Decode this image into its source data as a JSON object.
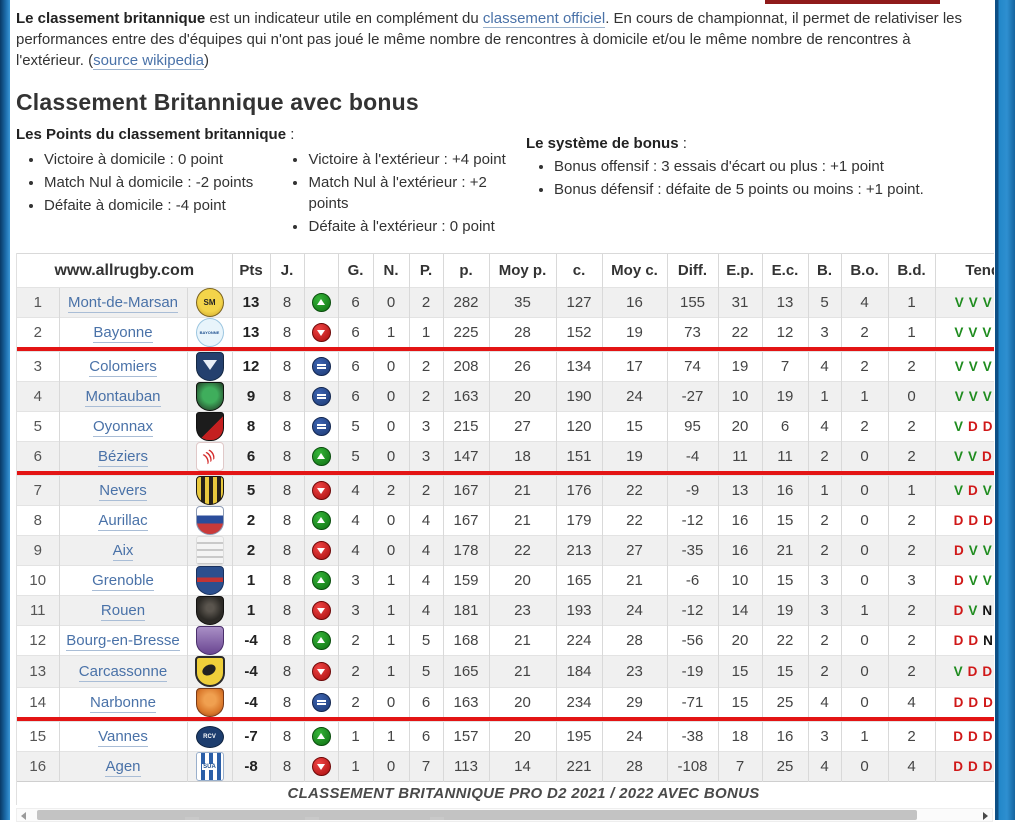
{
  "colors": {
    "side_band_blue": "#2287c9",
    "top_bar_maroon": "#8f1a1a",
    "zone_line_red": "#e31414",
    "win_green": "#1f8c1f",
    "loss_red": "#d01818",
    "draw_black": "#111111",
    "link_blue": "#4a72a8"
  },
  "intro": {
    "bold_lead": "Le classement britannique",
    "text_after_lead": " est un indicateur utile en complément du ",
    "link_official": "classement officiel",
    "text_mid": ". En cours de championnat, il permet de relativiser les performances entre des d'équipes qui n'ont pas joué le même nombre de rencontres à domicile et/ou le même nombre de rencontres à l'extérieur. (",
    "link_wikipedia": "source wikipedia",
    "text_end": ")"
  },
  "heading": "Classement Britannique avec bonus",
  "points_block": {
    "title": "Les Points du classement britannique",
    "title_suffix": " :",
    "col1": [
      "Victoire à domicile : 0 point",
      "Match Nul à domicile : -2 points",
      "Défaite à domicile : -4 point"
    ],
    "col2": [
      "Victoire à l'extérieur : +4 point",
      "Match Nul à l'extérieur : +2 points",
      "Défaite à l'extérieur : 0 point"
    ]
  },
  "bonus_block": {
    "title": "Le système de bonus",
    "title_suffix": " :",
    "items": [
      "Bonus offensif : 3 essais d'écart ou plus : +1 point",
      "Bonus défensif : défaite de 5 points ou moins : +1 point."
    ]
  },
  "table": {
    "site_header": "www.allrugby.com",
    "columns": [
      "Pts",
      "J.",
      "",
      "G.",
      "N.",
      "P.",
      "p.",
      "Moy p.",
      "c.",
      "Moy c.",
      "Diff.",
      "E.p.",
      "E.c.",
      "B.",
      "B.o.",
      "B.d.",
      "Tend"
    ],
    "caption": "CLASSEMENT BRITANNIQUE PRO D2 2021 / 2022 AVEC BONUS",
    "rows": [
      {
        "rank": "1",
        "team": "Mont-de-Marsan",
        "logo": "mont-de-marsan-logo",
        "logo_text": "SM",
        "trend": "up",
        "pts": "13",
        "j": "8",
        "g": "6",
        "n": "0",
        "p": "2",
        "pf": "282",
        "moy_p": "35",
        "c": "127",
        "moy_c": "16",
        "diff": "155",
        "ep": "31",
        "ec": "13",
        "b": "5",
        "bo": "4",
        "bd": "1",
        "tend": "VVVV",
        "sep_after": false
      },
      {
        "rank": "2",
        "team": "Bayonne",
        "logo": "bayonne-logo",
        "logo_text": "BAYONNE",
        "trend": "down",
        "pts": "13",
        "j": "8",
        "g": "6",
        "n": "1",
        "p": "1",
        "pf": "225",
        "moy_p": "28",
        "c": "152",
        "moy_c": "19",
        "diff": "73",
        "ep": "22",
        "ec": "12",
        "b": "3",
        "bo": "2",
        "bd": "1",
        "tend": "VVVN",
        "sep_after": true
      },
      {
        "rank": "3",
        "team": "Colomiers",
        "logo": "colomiers-logo",
        "logo_text": "",
        "trend": "equal",
        "pts": "12",
        "j": "8",
        "g": "6",
        "n": "0",
        "p": "2",
        "pf": "208",
        "moy_p": "26",
        "c": "134",
        "moy_c": "17",
        "diff": "74",
        "ep": "19",
        "ec": "7",
        "b": "4",
        "bo": "2",
        "bd": "2",
        "tend": "VVVV",
        "sep_after": false
      },
      {
        "rank": "4",
        "team": "Montauban",
        "logo": "montauban-logo",
        "logo_text": "",
        "trend": "equal",
        "pts": "9",
        "j": "8",
        "g": "6",
        "n": "0",
        "p": "2",
        "pf": "163",
        "moy_p": "20",
        "c": "190",
        "moy_c": "24",
        "diff": "-27",
        "ep": "10",
        "ec": "19",
        "b": "1",
        "bo": "1",
        "bd": "0",
        "tend": "VVVV",
        "sep_after": false
      },
      {
        "rank": "5",
        "team": "Oyonnax",
        "logo": "oyonnax-logo",
        "logo_text": "",
        "trend": "equal",
        "pts": "8",
        "j": "8",
        "g": "5",
        "n": "0",
        "p": "3",
        "pf": "215",
        "moy_p": "27",
        "c": "120",
        "moy_c": "15",
        "diff": "95",
        "ep": "20",
        "ec": "6",
        "b": "4",
        "bo": "2",
        "bd": "2",
        "tend": "VDDV",
        "sep_after": false
      },
      {
        "rank": "6",
        "team": "Béziers",
        "logo": "beziers-logo",
        "logo_text": ")))",
        "trend": "up",
        "pts": "6",
        "j": "8",
        "g": "5",
        "n": "0",
        "p": "3",
        "pf": "147",
        "moy_p": "18",
        "c": "151",
        "moy_c": "19",
        "diff": "-4",
        "ep": "11",
        "ec": "11",
        "b": "2",
        "bo": "0",
        "bd": "2",
        "tend": "VVDD",
        "sep_after": true
      },
      {
        "rank": "7",
        "team": "Nevers",
        "logo": "nevers-logo",
        "logo_text": "",
        "trend": "down",
        "pts": "5",
        "j": "8",
        "g": "4",
        "n": "2",
        "p": "2",
        "pf": "167",
        "moy_p": "21",
        "c": "176",
        "moy_c": "22",
        "diff": "-9",
        "ep": "13",
        "ec": "16",
        "b": "1",
        "bo": "0",
        "bd": "1",
        "tend": "VDVN",
        "sep_after": false
      },
      {
        "rank": "8",
        "team": "Aurillac",
        "logo": "aurillac-logo",
        "logo_text": "",
        "trend": "up",
        "pts": "2",
        "j": "8",
        "g": "4",
        "n": "0",
        "p": "4",
        "pf": "167",
        "moy_p": "21",
        "c": "179",
        "moy_c": "22",
        "diff": "-12",
        "ep": "16",
        "ec": "15",
        "b": "2",
        "bo": "0",
        "bd": "2",
        "tend": "DDDV",
        "sep_after": false
      },
      {
        "rank": "9",
        "team": "Aix",
        "logo": "aix-logo",
        "logo_text": "",
        "trend": "down",
        "pts": "2",
        "j": "8",
        "g": "4",
        "n": "0",
        "p": "4",
        "pf": "178",
        "moy_p": "22",
        "c": "213",
        "moy_c": "27",
        "diff": "-35",
        "ep": "16",
        "ec": "21",
        "b": "2",
        "bo": "0",
        "bd": "2",
        "tend": "DVVD",
        "sep_after": false
      },
      {
        "rank": "10",
        "team": "Grenoble",
        "logo": "grenoble-logo",
        "logo_text": "",
        "trend": "up",
        "pts": "1",
        "j": "8",
        "g": "3",
        "n": "1",
        "p": "4",
        "pf": "159",
        "moy_p": "20",
        "c": "165",
        "moy_c": "21",
        "diff": "-6",
        "ep": "10",
        "ec": "15",
        "b": "3",
        "bo": "0",
        "bd": "3",
        "tend": "DVVD",
        "sep_after": false
      },
      {
        "rank": "11",
        "team": "Rouen",
        "logo": "rouen-logo",
        "logo_text": "",
        "trend": "down",
        "pts": "1",
        "j": "8",
        "g": "3",
        "n": "1",
        "p": "4",
        "pf": "181",
        "moy_p": "23",
        "c": "193",
        "moy_c": "24",
        "diff": "-12",
        "ep": "14",
        "ec": "19",
        "b": "3",
        "bo": "1",
        "bd": "2",
        "tend": "DVND",
        "sep_after": false
      },
      {
        "rank": "12",
        "team": "Bourg-en-Bresse",
        "logo": "bourg-en-bresse-logo",
        "logo_text": "",
        "trend": "up",
        "pts": "-4",
        "j": "8",
        "g": "2",
        "n": "1",
        "p": "5",
        "pf": "168",
        "moy_p": "21",
        "c": "224",
        "moy_c": "28",
        "diff": "-56",
        "ep": "20",
        "ec": "22",
        "b": "2",
        "bo": "0",
        "bd": "2",
        "tend": "DDNV",
        "sep_after": false
      },
      {
        "rank": "13",
        "team": "Carcassonne",
        "logo": "carcassonne-logo",
        "logo_text": "",
        "trend": "down",
        "pts": "-4",
        "j": "8",
        "g": "2",
        "n": "1",
        "p": "5",
        "pf": "165",
        "moy_p": "21",
        "c": "184",
        "moy_c": "23",
        "diff": "-19",
        "ep": "15",
        "ec": "15",
        "b": "2",
        "bo": "0",
        "bd": "2",
        "tend": "VDDD",
        "sep_after": false
      },
      {
        "rank": "14",
        "team": "Narbonne",
        "logo": "narbonne-logo",
        "logo_text": "",
        "trend": "equal",
        "pts": "-4",
        "j": "8",
        "g": "2",
        "n": "0",
        "p": "6",
        "pf": "163",
        "moy_p": "20",
        "c": "234",
        "moy_c": "29",
        "diff": "-71",
        "ep": "15",
        "ec": "25",
        "b": "4",
        "bo": "0",
        "bd": "4",
        "tend": "DDDV",
        "sep_after": true
      },
      {
        "rank": "15",
        "team": "Vannes",
        "logo": "vannes-logo",
        "logo_text": "RCV",
        "trend": "up",
        "pts": "-7",
        "j": "8",
        "g": "1",
        "n": "1",
        "p": "6",
        "pf": "157",
        "moy_p": "20",
        "c": "195",
        "moy_c": "24",
        "diff": "-38",
        "ep": "18",
        "ec": "16",
        "b": "3",
        "bo": "1",
        "bd": "2",
        "tend": "DDDD",
        "sep_after": false
      },
      {
        "rank": "16",
        "team": "Agen",
        "logo": "agen-logo",
        "logo_text": "SUA",
        "trend": "down",
        "pts": "-8",
        "j": "8",
        "g": "1",
        "n": "0",
        "p": "7",
        "pf": "113",
        "moy_p": "14",
        "c": "221",
        "moy_c": "28",
        "diff": "-108",
        "ep": "7",
        "ec": "25",
        "b": "4",
        "bo": "0",
        "bd": "4",
        "tend": "DDDD",
        "sep_after": false
      }
    ]
  }
}
